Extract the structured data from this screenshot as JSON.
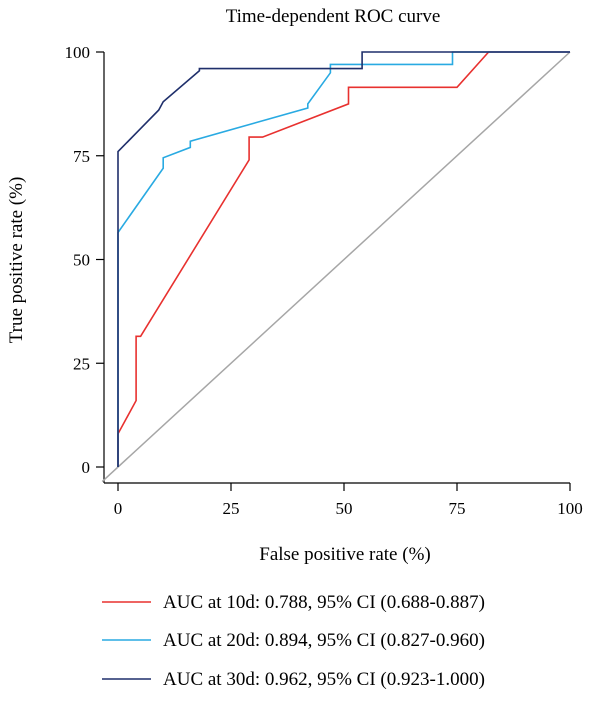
{
  "chart_data": {
    "type": "line",
    "title": "Time-dependent ROC curve",
    "xlabel": "False positive rate (%)",
    "ylabel": "True positive rate (%)",
    "xlim": [
      0,
      100
    ],
    "ylim": [
      0,
      100
    ],
    "xticks": [
      0,
      25,
      50,
      75,
      100
    ],
    "yticks": [
      0,
      25,
      50,
      75,
      100
    ],
    "grid": false,
    "legend_position": "bottom",
    "reference_line": {
      "from": [
        0,
        0
      ],
      "to": [
        100,
        100
      ],
      "color": "#a6a6a6"
    },
    "series": [
      {
        "name": "AUC at 10d: 0.788, 95% CI (0.688-0.887)",
        "color": "#e8312f",
        "x": [
          0,
          0,
          4,
          4,
          4,
          5,
          29,
          29,
          29,
          32,
          51,
          51,
          75,
          82,
          100
        ],
        "y": [
          0,
          8,
          16,
          16,
          31.5,
          31.5,
          74,
          75,
          79.5,
          79.5,
          87.5,
          91.5,
          91.5,
          100,
          100
        ]
      },
      {
        "name": "AUC at 20d: 0.894, 95% CI (0.827-0.960)",
        "color": "#29aae2",
        "x": [
          0,
          0,
          10,
          10,
          16,
          16,
          42,
          42,
          47,
          47,
          74,
          74,
          100
        ],
        "y": [
          0,
          56.5,
          72,
          74.5,
          77,
          78.5,
          86.5,
          87.5,
          95,
          97,
          97,
          100,
          100
        ]
      },
      {
        "name": "AUC at 30d: 0.962, 95% CI (0.923-1.000)",
        "color": "#1f2f6b",
        "x": [
          0,
          0,
          9,
          10,
          18,
          18,
          54,
          54,
          100
        ],
        "y": [
          0,
          76,
          86,
          88,
          95.5,
          96,
          96,
          100,
          100
        ]
      }
    ]
  }
}
